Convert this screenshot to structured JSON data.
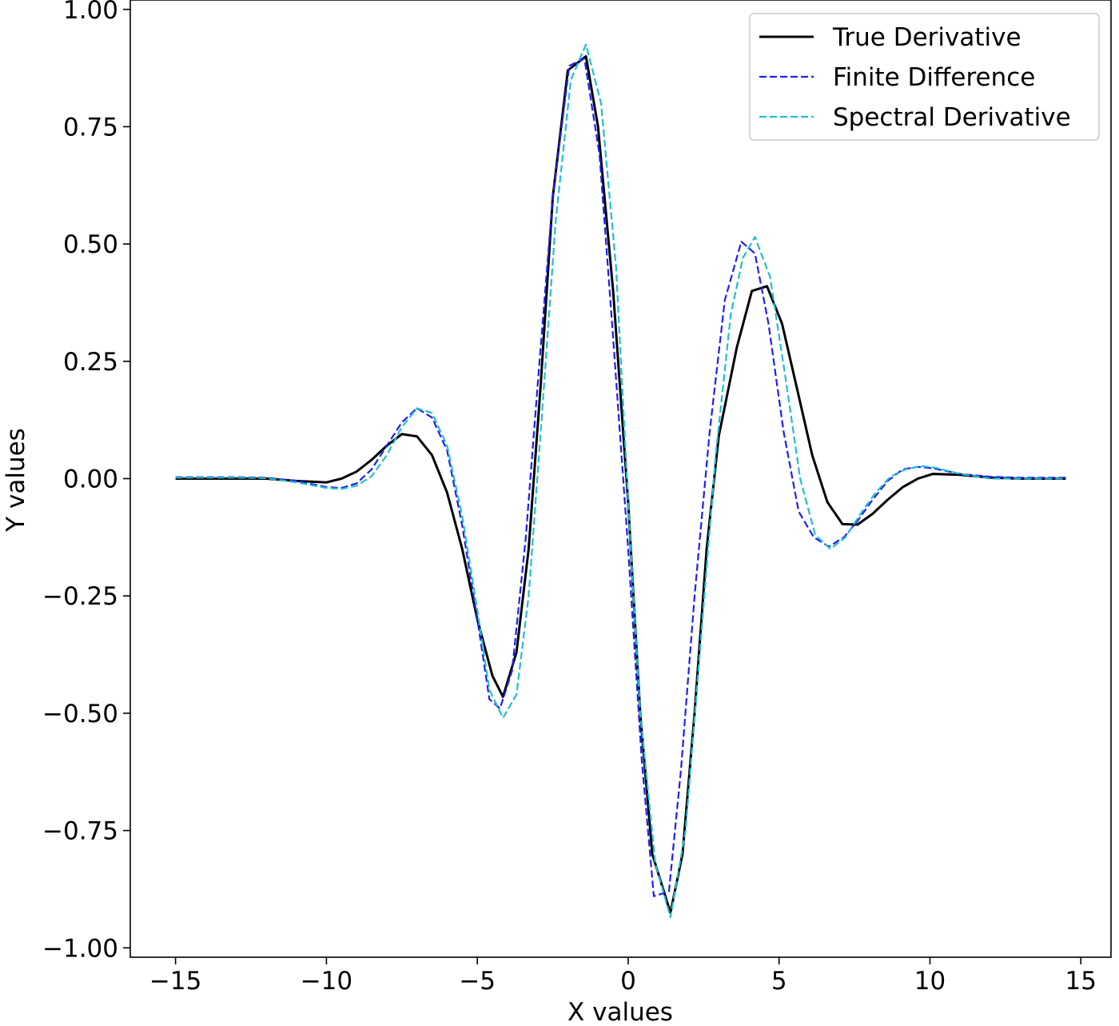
{
  "chart_data": {
    "type": "line",
    "xlabel": "X values",
    "ylabel": "Y values",
    "xlim": [
      -16.5,
      16
    ],
    "ylim": [
      -1.02,
      1.02
    ],
    "xticks": [
      -15,
      -10,
      -5,
      0,
      5,
      10,
      15
    ],
    "xtick_labels": [
      "−15",
      "−10",
      "−5",
      "0",
      "5",
      "10",
      "15"
    ],
    "yticks": [
      -1.0,
      -0.75,
      -0.5,
      -0.25,
      0.0,
      0.25,
      0.5,
      0.75,
      1.0
    ],
    "ytick_labels": [
      "−1.00",
      "−0.75",
      "−0.50",
      "−0.25",
      "0.00",
      "0.25",
      "0.50",
      "0.75",
      "1.00"
    ],
    "grid": false,
    "legend_position": "top-right",
    "series": [
      {
        "name": "True Derivative",
        "color": "#000000",
        "style": "solid",
        "points": [
          [
            -15.0,
            0.0
          ],
          [
            -14.0,
            0.0
          ],
          [
            -13.0,
            0.0
          ],
          [
            -12.0,
            0.0
          ],
          [
            -11.0,
            -0.005
          ],
          [
            -10.0,
            -0.008
          ],
          [
            -9.5,
            0.0
          ],
          [
            -9.0,
            0.015
          ],
          [
            -8.5,
            0.04
          ],
          [
            -8.0,
            0.07
          ],
          [
            -7.5,
            0.095
          ],
          [
            -7.0,
            0.09
          ],
          [
            -6.5,
            0.05
          ],
          [
            -6.0,
            -0.03
          ],
          [
            -5.5,
            -0.15
          ],
          [
            -5.0,
            -0.3
          ],
          [
            -4.5,
            -0.42
          ],
          [
            -4.15,
            -0.465
          ],
          [
            -3.7,
            -0.37
          ],
          [
            -3.3,
            -0.15
          ],
          [
            -2.9,
            0.2
          ],
          [
            -2.5,
            0.6
          ],
          [
            -2.0,
            0.87
          ],
          [
            -1.4,
            0.9
          ],
          [
            -1.0,
            0.75
          ],
          [
            -0.5,
            0.4
          ],
          [
            0.0,
            -0.05
          ],
          [
            0.4,
            -0.5
          ],
          [
            0.8,
            -0.8
          ],
          [
            1.4,
            -0.925
          ],
          [
            1.8,
            -0.8
          ],
          [
            2.2,
            -0.5
          ],
          [
            2.6,
            -0.15
          ],
          [
            3.0,
            0.09
          ],
          [
            3.6,
            0.28
          ],
          [
            4.1,
            0.4
          ],
          [
            4.6,
            0.41
          ],
          [
            5.1,
            0.33
          ],
          [
            5.6,
            0.19
          ],
          [
            6.1,
            0.05
          ],
          [
            6.6,
            -0.05
          ],
          [
            7.1,
            -0.097
          ],
          [
            7.6,
            -0.098
          ],
          [
            8.1,
            -0.075
          ],
          [
            8.6,
            -0.045
          ],
          [
            9.1,
            -0.018
          ],
          [
            9.6,
            0.0
          ],
          [
            10.1,
            0.01
          ],
          [
            11.0,
            0.008
          ],
          [
            12.0,
            0.002
          ],
          [
            13.0,
            0.0
          ],
          [
            14.5,
            0.0
          ]
        ]
      },
      {
        "name": "Finite Difference",
        "color": "#1f1ff0",
        "style": "dashed",
        "points": [
          [
            -15.0,
            0.003
          ],
          [
            -14.0,
            0.003
          ],
          [
            -13.0,
            0.003
          ],
          [
            -12.0,
            0.002
          ],
          [
            -11.0,
            -0.005
          ],
          [
            -10.0,
            -0.018
          ],
          [
            -9.5,
            -0.02
          ],
          [
            -9.0,
            -0.01
          ],
          [
            -8.5,
            0.02
          ],
          [
            -8.0,
            0.07
          ],
          [
            -7.5,
            0.12
          ],
          [
            -7.0,
            0.15
          ],
          [
            -6.5,
            0.13
          ],
          [
            -6.0,
            0.06
          ],
          [
            -5.5,
            -0.1
          ],
          [
            -5.0,
            -0.3
          ],
          [
            -4.6,
            -0.47
          ],
          [
            -4.25,
            -0.49
          ],
          [
            -3.85,
            -0.41
          ],
          [
            -3.4,
            -0.13
          ],
          [
            -3.0,
            0.2
          ],
          [
            -2.5,
            0.6
          ],
          [
            -1.95,
            0.88
          ],
          [
            -1.45,
            0.895
          ],
          [
            -0.95,
            0.69
          ],
          [
            -0.5,
            0.3
          ],
          [
            0.0,
            -0.15
          ],
          [
            0.45,
            -0.6
          ],
          [
            0.85,
            -0.89
          ],
          [
            1.35,
            -0.88
          ],
          [
            1.75,
            -0.62
          ],
          [
            2.2,
            -0.25
          ],
          [
            2.7,
            0.1
          ],
          [
            3.2,
            0.38
          ],
          [
            3.75,
            0.505
          ],
          [
            4.2,
            0.48
          ],
          [
            4.65,
            0.33
          ],
          [
            5.15,
            0.1
          ],
          [
            5.65,
            -0.07
          ],
          [
            6.15,
            -0.125
          ],
          [
            6.65,
            -0.145
          ],
          [
            7.15,
            -0.125
          ],
          [
            7.6,
            -0.09
          ],
          [
            8.1,
            -0.045
          ],
          [
            8.6,
            -0.005
          ],
          [
            9.1,
            0.02
          ],
          [
            9.6,
            0.025
          ],
          [
            10.1,
            0.022
          ],
          [
            11.0,
            0.01
          ],
          [
            12.0,
            0.004
          ],
          [
            13.0,
            0.002
          ],
          [
            14.5,
            0.002
          ]
        ]
      },
      {
        "name": "Spectral Derivative",
        "color": "#1fbfd0",
        "style": "dashed",
        "points": [
          [
            -15.0,
            0.002
          ],
          [
            -14.0,
            0.002
          ],
          [
            -13.0,
            0.002
          ],
          [
            -12.0,
            0.001
          ],
          [
            -11.0,
            -0.008
          ],
          [
            -10.0,
            -0.02
          ],
          [
            -9.5,
            -0.022
          ],
          [
            -9.0,
            -0.015
          ],
          [
            -8.5,
            0.005
          ],
          [
            -8.0,
            0.05
          ],
          [
            -7.5,
            0.11
          ],
          [
            -7.0,
            0.15
          ],
          [
            -6.5,
            0.14
          ],
          [
            -6.0,
            0.07
          ],
          [
            -5.5,
            -0.08
          ],
          [
            -5.0,
            -0.28
          ],
          [
            -4.6,
            -0.45
          ],
          [
            -4.15,
            -0.51
          ],
          [
            -3.7,
            -0.46
          ],
          [
            -3.3,
            -0.25
          ],
          [
            -2.9,
            0.1
          ],
          [
            -2.4,
            0.55
          ],
          [
            -1.9,
            0.85
          ],
          [
            -1.4,
            0.925
          ],
          [
            -0.9,
            0.8
          ],
          [
            -0.4,
            0.45
          ],
          [
            0.0,
            -0.05
          ],
          [
            0.4,
            -0.5
          ],
          [
            0.9,
            -0.82
          ],
          [
            1.4,
            -0.935
          ],
          [
            1.9,
            -0.75
          ],
          [
            2.4,
            -0.35
          ],
          [
            2.9,
            0.05
          ],
          [
            3.4,
            0.35
          ],
          [
            3.8,
            0.47
          ],
          [
            4.2,
            0.515
          ],
          [
            4.7,
            0.43
          ],
          [
            5.2,
            0.22
          ],
          [
            5.7,
            0.0
          ],
          [
            6.2,
            -0.12
          ],
          [
            6.7,
            -0.15
          ],
          [
            7.2,
            -0.125
          ],
          [
            7.7,
            -0.075
          ],
          [
            8.2,
            -0.03
          ],
          [
            8.7,
            0.005
          ],
          [
            9.2,
            0.02
          ],
          [
            9.7,
            0.027
          ],
          [
            10.2,
            0.023
          ],
          [
            11.0,
            0.01
          ],
          [
            12.0,
            0.0
          ],
          [
            13.0,
            0.0
          ],
          [
            14.5,
            0.0
          ]
        ]
      }
    ]
  }
}
